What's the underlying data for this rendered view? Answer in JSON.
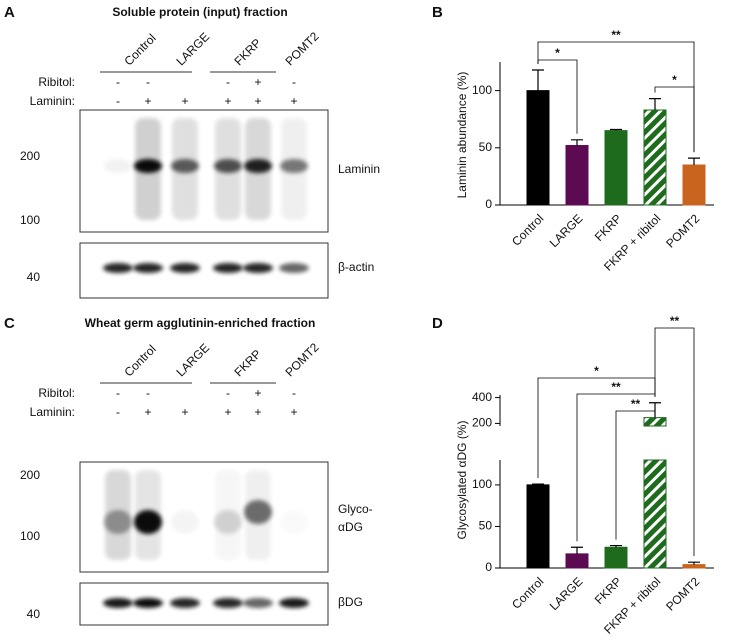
{
  "blots": [
    {
      "panel": "A",
      "title": "Soluble protein (input) fraction",
      "lanes": [
        "Control",
        "LARGE",
        "FKRP",
        "POMT2"
      ],
      "ribitol_label": "Ribitol:",
      "ribitol": [
        "-",
        "-",
        null,
        "-",
        "+",
        "-"
      ],
      "laminin_label": "Laminin:",
      "laminin": [
        "-",
        "+",
        "+",
        "+",
        "+",
        "+"
      ],
      "top_markers": [
        200,
        100
      ],
      "bottom_markers": [
        40
      ],
      "top_band": "Laminin",
      "bottom_band": "β-actin"
    },
    {
      "panel": "C",
      "title": "Wheat germ agglutinin-enriched fraction",
      "lanes": [
        "Control",
        "LARGE",
        "FKRP",
        "POMT2"
      ],
      "ribitol_label": "Ribitol:",
      "ribitol": [
        "-",
        "-",
        null,
        "-",
        "+",
        "-"
      ],
      "laminin_label": "Laminin:",
      "laminin": [
        "-",
        "+",
        "+",
        "+",
        "+",
        "+"
      ],
      "top_markers": [
        200,
        100
      ],
      "bottom_markers": [
        40
      ],
      "top_band": "Glyco-αDG",
      "bottom_band": "βDG"
    }
  ],
  "chart_data": [
    {
      "type": "bar",
      "panel": "B",
      "y_label": "Laminin abundance (%)",
      "categories": [
        "Control",
        "LARGE",
        "FKRP",
        "FKRP + ribitol",
        "POMT2"
      ],
      "values": [
        100,
        52,
        65,
        83,
        35
      ],
      "errors": [
        18,
        5,
        1,
        10,
        6
      ],
      "colors": [
        "#000000",
        "#5c0a52",
        "#1e6b1e",
        "#1e6b1e",
        "#c8641e"
      ],
      "hatched": [
        "FKRP + ribitol"
      ],
      "ylim": [
        0,
        125
      ],
      "yticks": [
        0,
        50,
        100
      ],
      "significance": [
        {
          "from": "Control",
          "to": "LARGE",
          "label": "*"
        },
        {
          "from": "Control",
          "to": "POMT2",
          "label": "**"
        },
        {
          "from": "FKRP + ribitol",
          "to": "POMT2",
          "label": "*"
        }
      ]
    },
    {
      "type": "bar",
      "panel": "D",
      "y_label": "Glycosylated αDG (%)",
      "categories": [
        "Control",
        "LARGE",
        "FKRP",
        "FKRP + ribitol",
        "POMT2"
      ],
      "values": [
        100,
        17,
        25,
        245,
        4
      ],
      "errors": [
        1,
        8,
        2,
        115,
        3
      ],
      "colors": [
        "#000000",
        "#5c0a52",
        "#1e6b1e",
        "#1e6b1e",
        "#c8641e"
      ],
      "hatched": [
        "FKRP + ribitol"
      ],
      "ylim": [
        0,
        420
      ],
      "y_break": [
        130,
        180
      ],
      "yticks": [
        0,
        50,
        100,
        200,
        400
      ],
      "significance": [
        {
          "from": "Control",
          "to": "FKRP + ribitol",
          "label": "*"
        },
        {
          "from": "LARGE",
          "to": "FKRP + ribitol",
          "label": "**"
        },
        {
          "from": "FKRP",
          "to": "FKRP + ribitol",
          "label": "**"
        },
        {
          "from": "FKRP + ribitol",
          "to": "POMT2",
          "label": "**"
        }
      ]
    }
  ]
}
